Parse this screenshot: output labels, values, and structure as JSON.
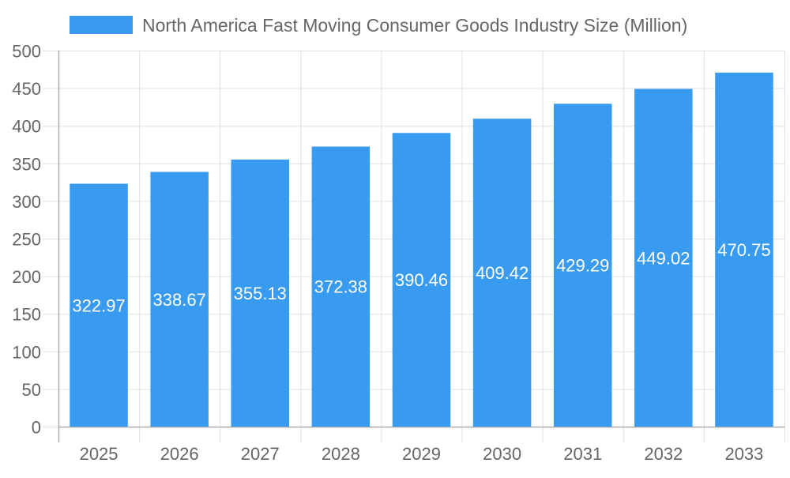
{
  "chart_data": {
    "type": "bar",
    "title": "",
    "xlabel": "",
    "ylabel": "",
    "categories": [
      "2025",
      "2026",
      "2027",
      "2028",
      "2029",
      "2030",
      "2031",
      "2032",
      "2033"
    ],
    "series": [
      {
        "name": "North America Fast Moving Consumer Goods Industry Size (Million)",
        "values": [
          322.97,
          338.67,
          355.13,
          372.38,
          390.46,
          409.42,
          429.29,
          449.02,
          470.75
        ],
        "labels": [
          "322.97",
          "338.67",
          "355.13",
          "372.38",
          "390.46",
          "409.42",
          "429.29",
          "449.02",
          "470.75"
        ]
      }
    ],
    "ylim": [
      0,
      500
    ],
    "yticks": [
      "0",
      "50",
      "100",
      "150",
      "200",
      "250",
      "300",
      "350",
      "400",
      "450",
      "500"
    ],
    "grid": true,
    "legend_position": "top",
    "colors": {
      "bar": "#389bef",
      "grid": "#e0e0e0",
      "axis": "#aaaaaa",
      "text": "#666666",
      "data_label": "#ffffff"
    }
  }
}
